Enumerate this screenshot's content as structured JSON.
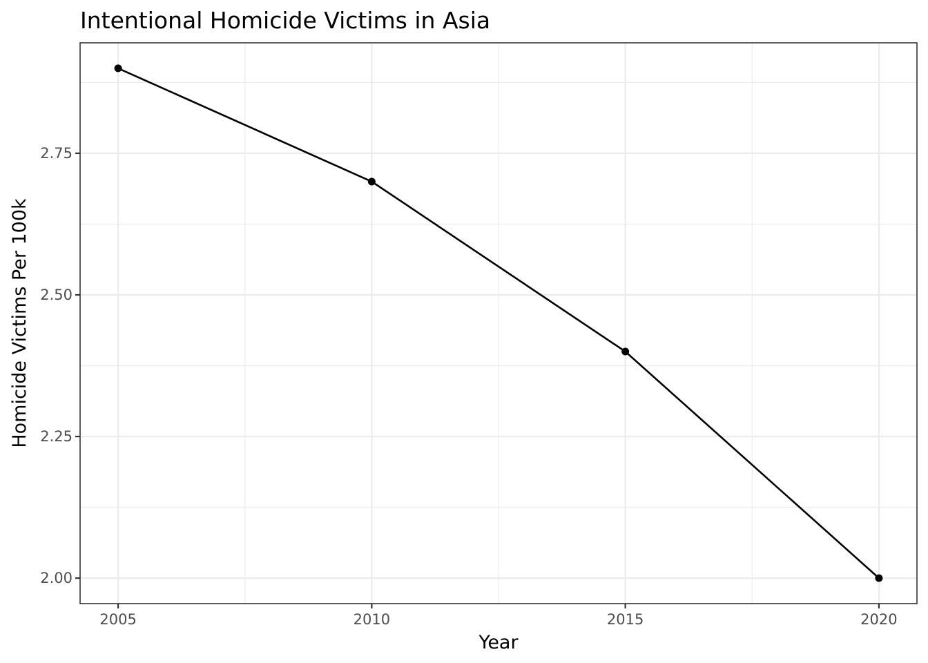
{
  "chart_data": {
    "type": "line",
    "title": "Intentional Homicide Victims in Asia",
    "xlabel": "Year",
    "ylabel": "Homicide Victims Per 100k",
    "x": [
      2005,
      2010,
      2015,
      2020
    ],
    "series": [
      {
        "values": [
          2.9,
          2.7,
          2.4,
          2.0
        ]
      }
    ],
    "xlim": [
      2004.25,
      2020.75
    ],
    "ylim": [
      1.955,
      2.945
    ],
    "x_ticks": [
      2005,
      2010,
      2015,
      2020
    ],
    "x_tick_labels": [
      "2005",
      "2010",
      "2015",
      "2020"
    ],
    "y_ticks": [
      2.0,
      2.25,
      2.5,
      2.75
    ],
    "y_tick_labels": [
      "2.00",
      "2.25",
      "2.50",
      "2.75"
    ],
    "x_minor_ticks": [
      2007.5,
      2012.5,
      2017.5
    ],
    "y_minor_ticks": [
      2.125,
      2.375,
      2.625,
      2.875
    ],
    "grid": true,
    "line_color": "#000000",
    "grid_color": "#ebebeb"
  }
}
